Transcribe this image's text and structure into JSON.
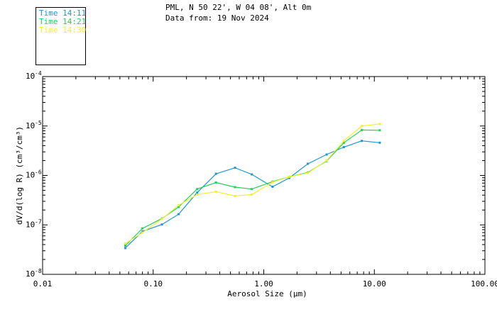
{
  "header": {
    "location": "PML, N 50 22', W 04 08', Alt 0m",
    "date": "Data from: 19 Nov 2024"
  },
  "legend": [
    {
      "label": "Time 14:11",
      "color": "#1e96d2"
    },
    {
      "label": "Time 14:21",
      "color": "#1ed25a"
    },
    {
      "label": "Time 14:30",
      "color": "#f0f032"
    }
  ],
  "chart_data": {
    "type": "line",
    "title": "PML, N 50 22', W 04 08', Alt 0m",
    "subtitle": "Data from: 19 Nov 2024",
    "xlabel": "Aerosol Size (µm)",
    "ylabel": "dV/d(log R) (cm³/cm³)",
    "x_scale": "log",
    "y_scale": "log",
    "xlim": [
      0.01,
      100
    ],
    "ylim": [
      1e-08,
      0.0001
    ],
    "x_ticks": [
      {
        "value": 0.01,
        "label": "0.01"
      },
      {
        "value": 0.1,
        "label": "0.10"
      },
      {
        "value": 1,
        "label": "1.00"
      },
      {
        "value": 10,
        "label": "10.00"
      },
      {
        "value": 100,
        "label": "100.00"
      }
    ],
    "y_ticks": [
      {
        "value": 1e-08,
        "base": "10",
        "exp": "-8"
      },
      {
        "value": 1e-07,
        "base": "10",
        "exp": "-7"
      },
      {
        "value": 1e-06,
        "base": "10",
        "exp": "-6"
      },
      {
        "value": 1e-05,
        "base": "10",
        "exp": "-5"
      },
      {
        "value": 0.0001,
        "base": "10",
        "exp": "-4"
      }
    ],
    "x": [
      0.056,
      0.08,
      0.12,
      0.17,
      0.25,
      0.37,
      0.55,
      0.78,
      1.2,
      1.7,
      2.5,
      3.7,
      5.3,
      7.7,
      11.2
    ],
    "series": [
      {
        "name": "Time 14:11",
        "color": "#1e96d2",
        "values": [
          3.4e-08,
          7.4e-08,
          1.02e-07,
          1.65e-07,
          4.5e-07,
          1.08e-06,
          1.43e-06,
          1.05e-06,
          5.9e-07,
          8.9e-07,
          1.72e-06,
          2.65e-06,
          3.75e-06,
          5e-06,
          4.6e-06
        ]
      },
      {
        "name": "Time 14:21",
        "color": "#1ed25a",
        "values": [
          3.8e-08,
          8.5e-08,
          1.35e-07,
          2.3e-07,
          5.3e-07,
          7.2e-07,
          5.8e-07,
          5.3e-07,
          7.5e-07,
          9.4e-07,
          1.15e-06,
          1.95e-06,
          4.6e-06,
          8.3e-06,
          8.2e-06
        ]
      },
      {
        "name": "Time 14:30",
        "color": "#f0f032",
        "values": [
          4.2e-08,
          7e-08,
          1.32e-07,
          2.5e-07,
          4.1e-07,
          4.7e-07,
          3.85e-07,
          4.1e-07,
          7.3e-07,
          9.4e-07,
          1.12e-06,
          2e-06,
          5e-06,
          1e-05,
          1.1e-05
        ]
      }
    ]
  }
}
